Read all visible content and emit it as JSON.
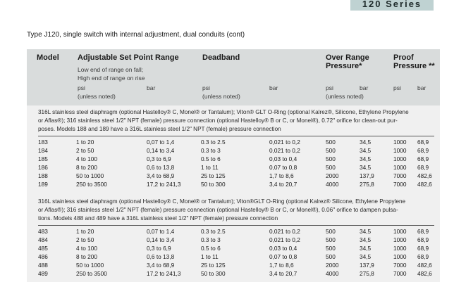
{
  "series_tab": "120 Series",
  "title": "Type J120, single switch with internal adjustment, dual conduits (cont)",
  "headers": {
    "model": "Model",
    "range": "Adjustable Set Point Range",
    "range_note_1": "Low end of range on fall;",
    "range_note_2": "High end of range on rise",
    "deadband": "Deadband",
    "over_range": "Over Range",
    "over_range_2": "Pressure*",
    "proof": "Proof",
    "proof_2": "Pressure **",
    "psi": "psi",
    "unless": "(unless noted)",
    "bar": "bar"
  },
  "sections": [
    {
      "desc": [
        "316L stainless steel diaphragm (optional Hastelloy® C, Monel® or Tantalum); Viton® GLT O-Ring (optional Kalrez®, Silicone, Ethylene Propylene",
        "or Aflas®); 316 stainless steel 1/2\" NPT (female) pressure connection (optional Hastelloy® B or C, or Monel®), 0.72\" orifice for clean-out pur-",
        "poses. Models 188 and 189 have a 316L stainless steel 1/2\" NPT (female) pressure connection"
      ],
      "rows": [
        [
          "183",
          "1 to 20",
          "0,07 to 1,4",
          "0.3 to 2.5",
          "0,021 to 0,2",
          "500",
          "34,5",
          "1000",
          "68,9"
        ],
        [
          "184",
          "2 to 50",
          "0,14 to 3,4",
          "0.3 to 3",
          "0,021 to 0,2",
          "500",
          "34,5",
          "1000",
          "68,9"
        ],
        [
          "185",
          "4 to 100",
          "0,3 to 6,9",
          "0.5 to 6",
          "0,03 to 0,4",
          "500",
          "34,5",
          "1000",
          "68,9"
        ],
        [
          "186",
          "8 to 200",
          "0,6 to 13,8",
          "1 to 11",
          "0,07 to 0,8",
          "500",
          "34,5",
          "1000",
          "68,9"
        ],
        [
          "188",
          "50 to 1000",
          "3,4 to 68,9",
          "25 to 125",
          "1,7 to 8,6",
          "2000",
          "137,9",
          "7000",
          "482,6"
        ],
        [
          "189",
          "250 to 3500",
          "17,2 to 241,3",
          "50 to 300",
          "3,4 to 20,7",
          "4000",
          "275,8",
          "7000",
          "482,6"
        ]
      ]
    },
    {
      "desc": [
        "316L stainless steel diaphragm (optional Hastelloy® C, Monel® or Tantalum); Viton®GLT O-Ring (optional Kalrez® Silicone, Ethylene Propylene",
        "or Aflas®); 316 stainless steel 1/2\" NPT (female) pressure connection (optional Hastelloy® B or C, or Monel®), 0.06\" orifice to dampen pulsa-",
        "tions. Models 488 and 489 have a 316L stainless steel 1/2\" NPT (female) pressure connection"
      ],
      "rows": [
        [
          "483",
          "1 to 20",
          "0,07 to 1,4",
          "0.3 to 2.5",
          "0,021 to 0,2",
          "500",
          "34,5",
          "1000",
          "68,9"
        ],
        [
          "484",
          "2 to 50",
          "0,14 to 3,4",
          "0.3 to 3",
          "0,021 to 0,2",
          "500",
          "34,5",
          "1000",
          "68,9"
        ],
        [
          "485",
          "4 to 100",
          "0,3 to 6,9",
          "0.5 to 6",
          "0,03 to 0,4",
          "500",
          "34,5",
          "1000",
          "68,9"
        ],
        [
          "486",
          "8 to 200",
          "0,6 to 13,8",
          "1 to 11",
          "0,07 to 0,8",
          "500",
          "34,5",
          "1000",
          "68,9"
        ],
        [
          "488",
          "50 to 1000",
          "3,4 to 68,9",
          "25 to 125",
          "1,7 to 8,6",
          "2000",
          "137,9",
          "7000",
          "482,6"
        ],
        [
          "489",
          "250 to 3500",
          "17,2 to 241,3",
          "50 to 300",
          "3,4 to 20,7",
          "4000",
          "275,8",
          "7000",
          "482,6"
        ]
      ]
    }
  ]
}
